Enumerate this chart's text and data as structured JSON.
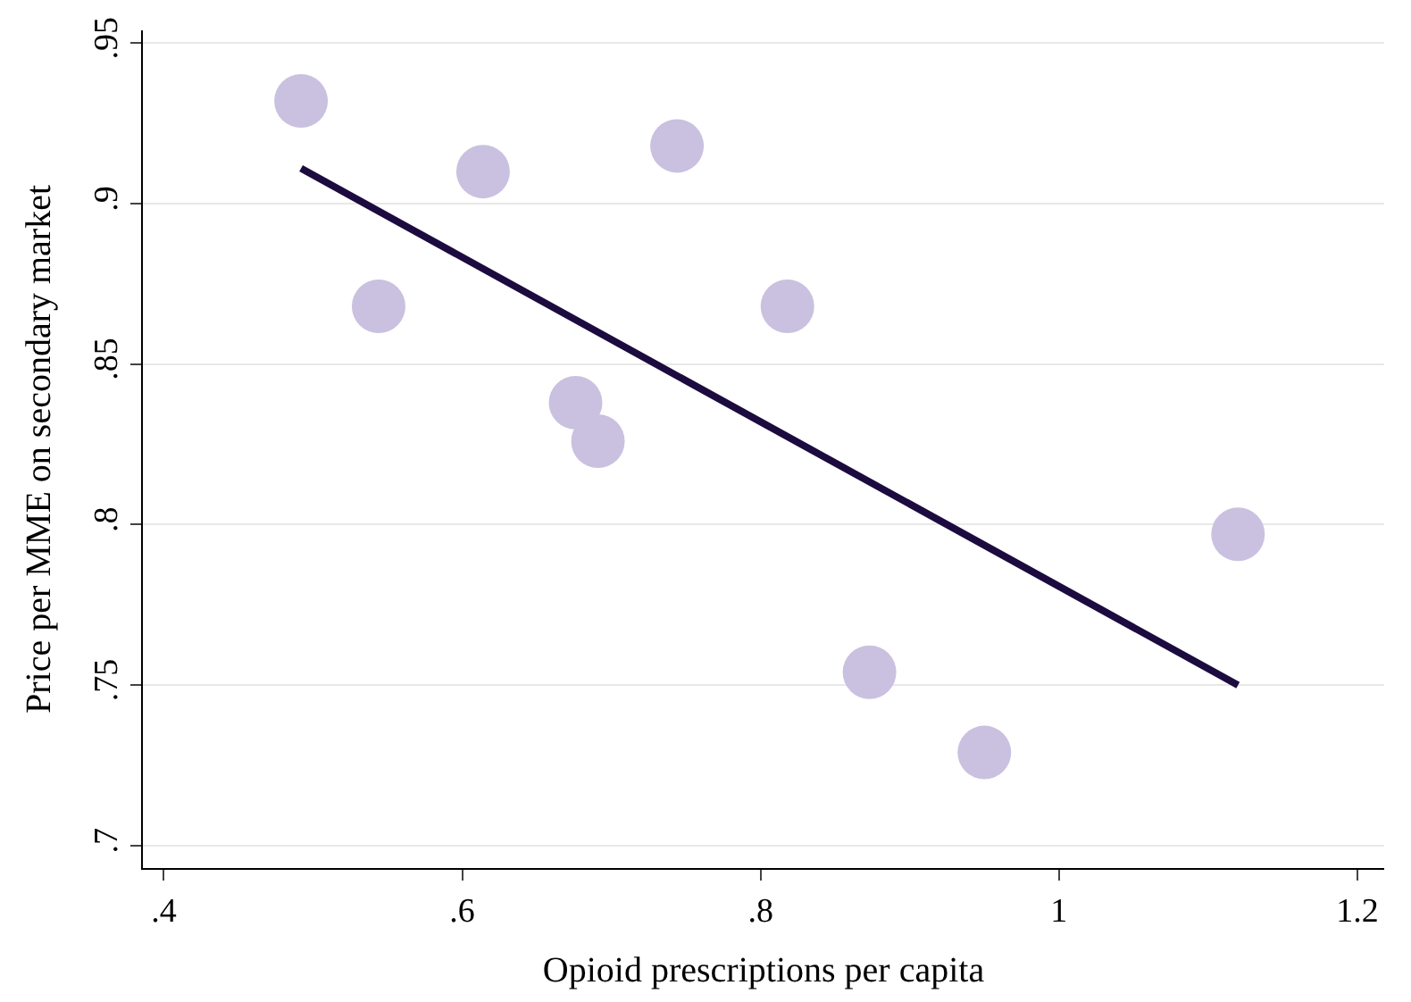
{
  "chart_data": {
    "type": "scatter",
    "xlabel": "Opioid prescriptions per capita",
    "ylabel": "Price per MME on secondary market",
    "xlim": [
      0.386,
      1.218
    ],
    "ylim": [
      0.693,
      0.954
    ],
    "xticks": [
      {
        "value": 0.4,
        "label": ".4"
      },
      {
        "value": 0.6,
        "label": ".6"
      },
      {
        "value": 0.8,
        "label": ".8"
      },
      {
        "value": 1,
        "label": "1"
      },
      {
        "value": 1.2,
        "label": "1.2"
      }
    ],
    "yticks": [
      {
        "value": 0.7,
        "label": ".7"
      },
      {
        "value": 0.75,
        "label": ".75"
      },
      {
        "value": 0.8,
        "label": ".8"
      },
      {
        "value": 0.85,
        "label": ".85"
      },
      {
        "value": 0.9,
        "label": ".9"
      },
      {
        "value": 0.95,
        "label": ".95"
      }
    ],
    "grid": "y",
    "series": [
      {
        "marker": "circle",
        "color": "#c9c1df",
        "x": [
          0.492,
          0.544,
          0.614,
          0.744,
          0.676,
          0.691,
          0.818,
          0.873,
          0.95,
          1.12
        ],
        "values": [
          0.932,
          0.868,
          0.91,
          0.918,
          0.838,
          0.826,
          0.868,
          0.754,
          0.729,
          0.797
        ]
      },
      {
        "type": "line",
        "marker": "none",
        "color": "#1c0b3f",
        "x": [
          0.492,
          1.12
        ],
        "values": [
          0.911,
          0.75
        ]
      }
    ]
  }
}
